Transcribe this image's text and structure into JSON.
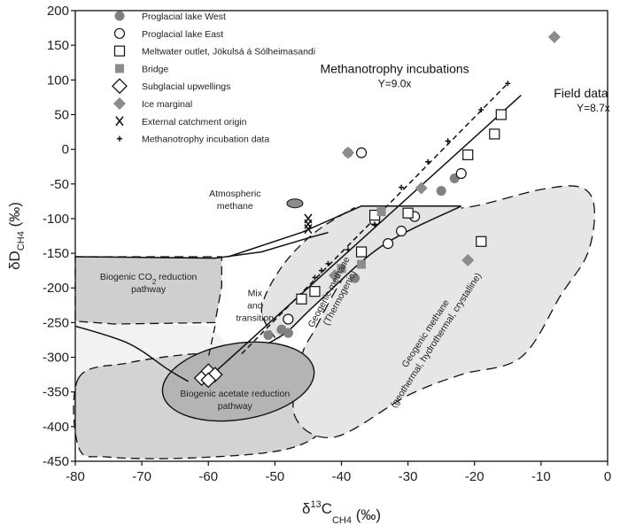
{
  "chart_data": {
    "type": "scatter",
    "xlabel": {
      "base": "δ",
      "sup": "13",
      "main": "C",
      "sub": "CH4",
      "unit": " (‰)"
    },
    "ylabel": {
      "main": "δD",
      "sub": "CH4",
      "unit": " (‰)"
    },
    "xlim": [
      -80,
      0
    ],
    "ylim": [
      -450,
      200
    ],
    "x_ticks": [
      -80,
      -70,
      -60,
      -50,
      -40,
      -30,
      -20,
      -10,
      0
    ],
    "y_ticks": [
      200,
      150,
      100,
      50,
      0,
      -50,
      -100,
      -150,
      -200,
      -250,
      -300,
      -350,
      -400,
      -450
    ],
    "legend_position": "top-left",
    "series": [
      {
        "name": "Proglacial lake West",
        "marker": "circle-filled",
        "color": "#808080",
        "points": [
          [
            -51,
            -268
          ],
          [
            -49,
            -260
          ],
          [
            -48,
            -265
          ],
          [
            -38,
            -186
          ],
          [
            -25,
            -60
          ],
          [
            -23,
            -42
          ],
          [
            -39,
            -5
          ]
        ]
      },
      {
        "name": "Proglacial lake East",
        "marker": "circle-open",
        "color": "#000000",
        "points": [
          [
            -37,
            -5
          ],
          [
            -48,
            -245
          ],
          [
            -35,
            -103
          ],
          [
            -33,
            -136
          ],
          [
            -31,
            -118
          ],
          [
            -29,
            -97
          ],
          [
            -22,
            -35
          ]
        ]
      },
      {
        "name": "Meltwater outlet, Jökulsá á Sólheimasandi",
        "marker": "square-open",
        "color": "#000000",
        "points": [
          [
            -46,
            -216
          ],
          [
            -44,
            -205
          ],
          [
            -37,
            -148
          ],
          [
            -35,
            -95
          ],
          [
            -30,
            -92
          ],
          [
            -21,
            -8
          ],
          [
            -17,
            22
          ],
          [
            -16,
            50
          ],
          [
            -19,
            -133
          ]
        ]
      },
      {
        "name": "Bridge",
        "marker": "square-filled",
        "color": "#8c8c8c",
        "points": [
          [
            -40,
            -172
          ],
          [
            -37,
            -166
          ],
          [
            -34,
            -90
          ]
        ]
      },
      {
        "name": "Subglacial upwellings",
        "marker": "diamond-open",
        "color": "#000000",
        "points": [
          [
            -61,
            -330
          ],
          [
            -60,
            -320
          ],
          [
            -59,
            -325
          ],
          [
            -60,
            -333
          ]
        ]
      },
      {
        "name": "Ice marginal",
        "marker": "diamond-filled",
        "color": "#8c8c8c",
        "points": [
          [
            -8,
            162
          ],
          [
            -39,
            -5
          ],
          [
            -28,
            -56
          ],
          [
            -41,
            -182
          ],
          [
            -21,
            -160
          ]
        ]
      },
      {
        "name": "External catchment origin",
        "marker": "x",
        "color": "#000000",
        "points": [
          [
            -45,
            -100
          ],
          [
            -45,
            -108
          ],
          [
            -45,
            -115
          ]
        ]
      },
      {
        "name": "Methanotrophy incubation data",
        "marker": "plus",
        "color": "#000000",
        "points": [
          [
            -15,
            95
          ],
          [
            -19,
            57
          ],
          [
            -24,
            12
          ],
          [
            -27,
            -18
          ],
          [
            -31,
            -55
          ],
          [
            -35,
            -108
          ],
          [
            -39,
            -145
          ],
          [
            -42,
            -165
          ],
          [
            -43,
            -175
          ],
          [
            -44,
            -185
          ]
        ]
      }
    ],
    "trendlines": [
      {
        "name": "Methanotrophy incubations",
        "equation": "Y=9.0x",
        "style": "dashed",
        "x": [
          -55,
          -15
        ],
        "y": [
          -295,
          95
        ]
      },
      {
        "name": "Field data",
        "equation": "Y=8.7x",
        "style": "solid",
        "x": [
          -60,
          -13
        ],
        "y": [
          -330,
          78
        ]
      }
    ],
    "regions": [
      {
        "name": "Biogenic CO2 reduction pathway",
        "fill": "#cfcfcf",
        "label_lines": [
          {
            "parts": [
              {
                "t": "Biogenic CO"
              },
              {
                "t": "2",
                "sub": true
              },
              {
                "t": " reduction"
              }
            ]
          },
          {
            "parts": [
              {
                "t": "pathway"
              }
            ]
          }
        ]
      },
      {
        "name": "Biogenic acetate reduction pathway",
        "fill": "#b4b4b4",
        "label_lines": [
          {
            "parts": [
              {
                "t": "Biogenic acetate reduction"
              }
            ]
          },
          {
            "parts": [
              {
                "t": "pathway"
              }
            ]
          }
        ]
      },
      {
        "name": "Mix and transition",
        "fill": "#f2f2f2",
        "label_lines": [
          {
            "parts": [
              {
                "t": "Mix"
              }
            ]
          },
          {
            "parts": [
              {
                "t": "and"
              }
            ]
          },
          {
            "parts": [
              {
                "t": "transition"
              }
            ]
          }
        ]
      },
      {
        "name": "Geogenic methane (Thermogenic)",
        "fill": "#e4e4e4",
        "label_lines": [
          {
            "parts": [
              {
                "t": "Geogenic methane"
              }
            ]
          },
          {
            "parts": [
              {
                "t": "(Thermogenic)"
              }
            ]
          }
        ]
      },
      {
        "name": "Geogenic methane (geothermal, hydrothermal, crystalline)",
        "fill": "#e6e6e6",
        "label_lines": [
          {
            "parts": [
              {
                "t": "Geogenic methane"
              }
            ]
          },
          {
            "parts": [
              {
                "t": "(geothermal, hydrothermal, crystalline)"
              }
            ]
          }
        ]
      },
      {
        "name": "Atmospheric methane",
        "fill": "#8c8c8c",
        "label_lines": [
          {
            "parts": [
              {
                "t": "Atmospheric"
              }
            ]
          },
          {
            "parts": [
              {
                "t": "methane"
              }
            ]
          }
        ]
      }
    ]
  }
}
